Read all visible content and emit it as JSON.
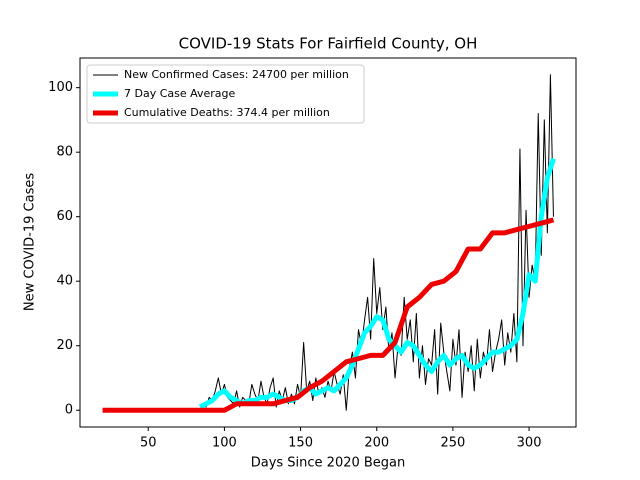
{
  "chart_data": {
    "type": "line",
    "title": "COVID-19 Stats For Fairfield County, OH",
    "x_label": "Days Since 2020 Began",
    "y_label": "New COVID-19 Cases",
    "xlim": [
      5.2,
      330.8
    ],
    "ylim": [
      -5.2,
      109.2
    ],
    "xticks": [
      50,
      100,
      150,
      200,
      250,
      300
    ],
    "yticks": [
      0,
      20,
      40,
      60,
      80,
      100
    ],
    "grid": false,
    "legend": "upper left",
    "series": [
      {
        "name": "New Confirmed Cases: 24700 per million",
        "color": "#000000",
        "line_width": 1,
        "x": [
          84,
          86,
          88,
          90,
          92,
          94,
          96,
          98,
          100,
          102,
          104,
          106,
          108,
          110,
          112,
          114,
          116,
          118,
          120,
          122,
          124,
          126,
          128,
          130,
          132,
          134,
          136,
          138,
          140,
          142,
          144,
          146,
          148,
          150,
          152,
          154,
          156,
          158,
          160,
          162,
          164,
          166,
          168,
          170,
          172,
          174,
          176,
          178,
          180,
          182,
          184,
          186,
          188,
          190,
          192,
          194,
          196,
          198,
          200,
          202,
          204,
          206,
          208,
          210,
          212,
          214,
          216,
          218,
          220,
          222,
          224,
          226,
          228,
          230,
          232,
          234,
          236,
          238,
          240,
          242,
          244,
          246,
          248,
          250,
          252,
          254,
          256,
          258,
          260,
          262,
          264,
          266,
          268,
          270,
          272,
          274,
          276,
          278,
          280,
          282,
          284,
          286,
          288,
          290,
          292,
          294,
          296,
          298,
          300,
          302,
          304,
          306,
          308,
          310,
          312,
          314,
          316
        ],
        "values": [
          0,
          2,
          1,
          4,
          3,
          6,
          10,
          5,
          8,
          4,
          3,
          2,
          6,
          1,
          4,
          3,
          2,
          8,
          5,
          3,
          9,
          4,
          2,
          7,
          10,
          1,
          6,
          3,
          7,
          2,
          5,
          2,
          8,
          4,
          21,
          6,
          9,
          3,
          10,
          5,
          7,
          4,
          9,
          6,
          12,
          8,
          5,
          11,
          0,
          13,
          18,
          10,
          25,
          20,
          28,
          35,
          22,
          47,
          30,
          38,
          25,
          32,
          18,
          24,
          10,
          20,
          17,
          35,
          22,
          28,
          15,
          30,
          10,
          20,
          8,
          16,
          14,
          25,
          5,
          27,
          18,
          12,
          6,
          22,
          14,
          25,
          4,
          18,
          12,
          20,
          6,
          22,
          10,
          18,
          14,
          25,
          12,
          18,
          22,
          28,
          14,
          24,
          18,
          30,
          15,
          81,
          20,
          62,
          35,
          45,
          40,
          92,
          48,
          90,
          55,
          104,
          60
        ]
      },
      {
        "name": "7 Day Case Average",
        "color": "#00ffff",
        "line_width": 5,
        "x": [
          84,
          88,
          92,
          96,
          100,
          104,
          108,
          112,
          116,
          120,
          124,
          128,
          132,
          136,
          140,
          144,
          148,
          152,
          156,
          160,
          164,
          168,
          172,
          176,
          180,
          184,
          188,
          192,
          196,
          200,
          204,
          208,
          212,
          216,
          220,
          224,
          228,
          232,
          236,
          240,
          244,
          248,
          252,
          256,
          260,
          264,
          268,
          272,
          276,
          280,
          284,
          288,
          292,
          296,
          300,
          304,
          308,
          312,
          316
        ],
        "values": [
          1,
          2,
          3,
          5,
          6,
          4,
          3,
          2,
          3,
          3,
          4,
          4,
          5,
          4,
          3,
          3,
          4,
          6,
          7,
          5,
          6,
          7,
          6,
          8,
          10,
          14,
          19,
          24,
          26,
          29,
          28,
          22,
          20,
          18,
          21,
          20,
          17,
          14,
          12,
          15,
          17,
          14,
          16,
          17,
          14,
          13,
          14,
          16,
          18,
          18,
          19,
          20,
          22,
          30,
          42,
          40,
          60,
          72,
          78
        ]
      },
      {
        "name": "Cumulative Deaths: 374.4 per million",
        "color": "#ee0000",
        "line_width": 5,
        "x": [
          20,
          28,
          36,
          44,
          52,
          60,
          68,
          76,
          84,
          92,
          100,
          108,
          116,
          124,
          132,
          140,
          148,
          156,
          164,
          172,
          180,
          188,
          196,
          204,
          212,
          220,
          228,
          236,
          244,
          252,
          260,
          268,
          276,
          284,
          292,
          300,
          308,
          316
        ],
        "values": [
          0,
          0,
          0,
          0,
          0,
          0,
          0,
          0,
          0,
          0,
          0,
          2,
          2,
          2,
          2,
          3,
          4,
          7,
          9,
          12,
          15,
          16,
          17,
          17,
          21,
          32,
          35,
          39,
          40,
          43,
          50,
          50,
          55,
          55,
          56,
          57,
          58,
          59
        ]
      }
    ]
  }
}
